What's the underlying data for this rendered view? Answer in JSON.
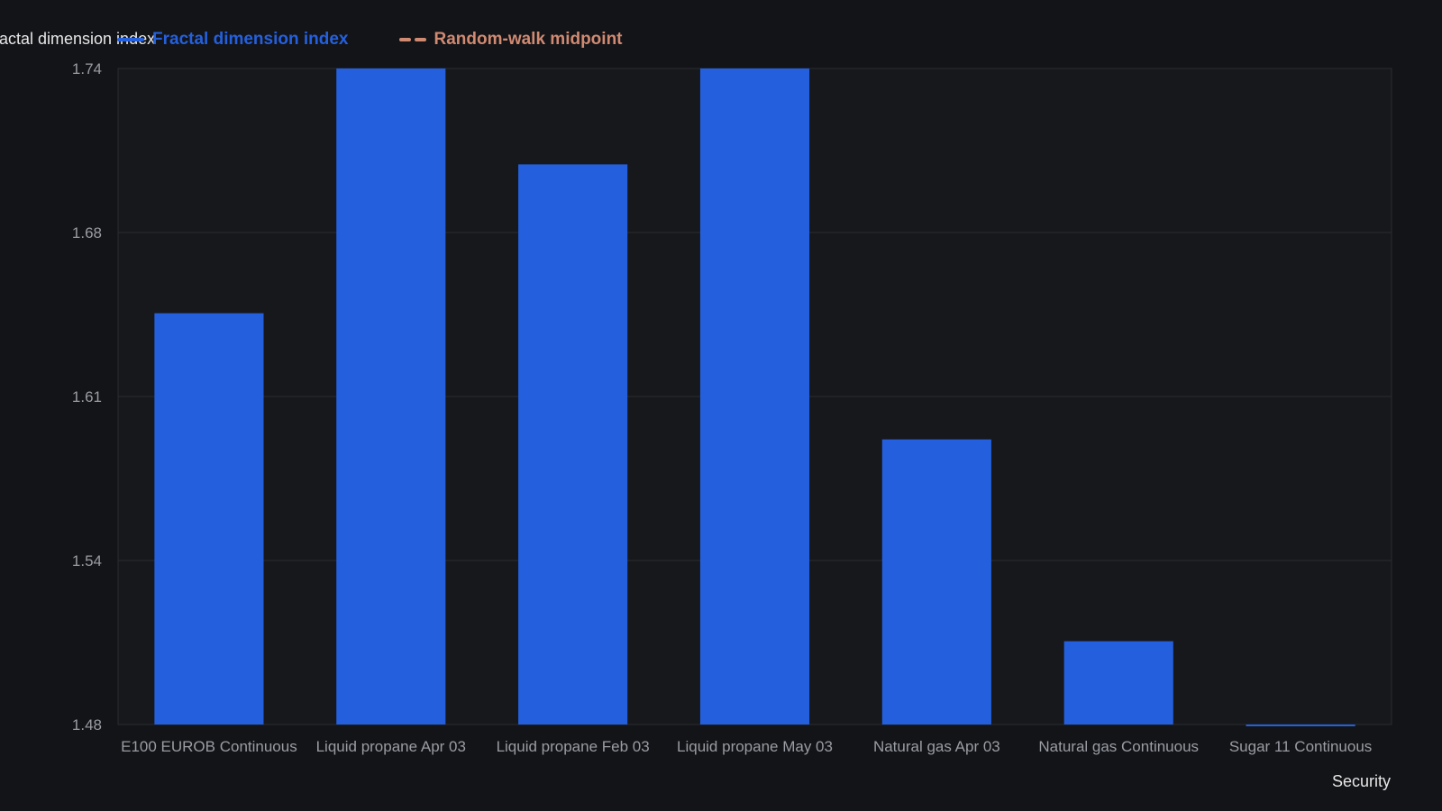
{
  "chart_data": {
    "type": "bar",
    "ylabel": "Fractal dimension index",
    "xlabel": "Security",
    "categories": [
      "E100 EUROB Continuous",
      "Liquid propane Apr 03",
      "Liquid propane Feb 03",
      "Liquid propane May 03",
      "Natural gas Apr 03",
      "Natural gas Continuous",
      "Sugar 11 Continuous"
    ],
    "series": [
      {
        "name": "Fractal dimension index",
        "values": [
          1.643,
          1.74,
          1.702,
          1.74,
          1.593,
          1.513,
          1.479
        ]
      }
    ],
    "reference_line": {
      "name": "Random-walk midpoint",
      "value": 1.5,
      "visible_in_range": false
    },
    "ylim": [
      1.48,
      1.74
    ],
    "yticks": [
      "1.74",
      "1.68",
      "1.61",
      "1.54",
      "1.48"
    ],
    "ytick_values": [
      1.74,
      1.675,
      1.61,
      1.545,
      1.48
    ],
    "grid": true,
    "legend_position": "top-left",
    "colors": {
      "bar": "#2460dd",
      "midpoint": "#d08a72",
      "background": "#131418",
      "plot_background": "#17181c"
    }
  }
}
